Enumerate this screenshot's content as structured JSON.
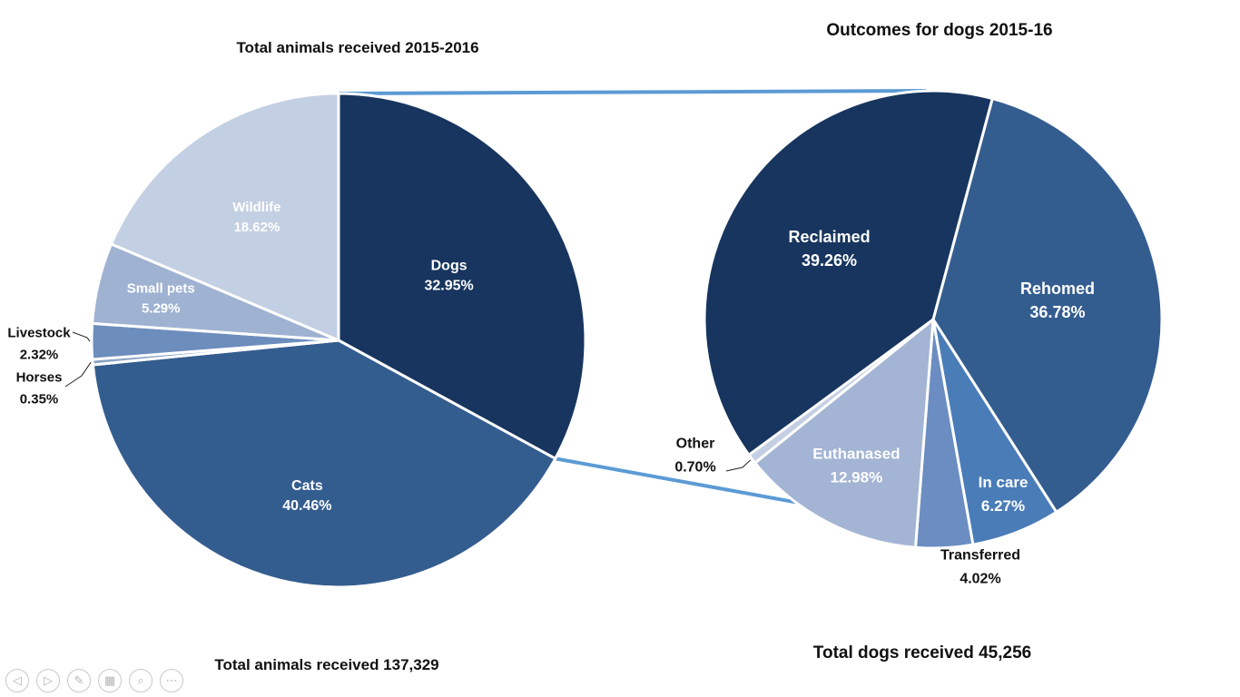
{
  "chart_data": [
    {
      "type": "pie",
      "title": "Total animals received 2015-2016",
      "footer": "Total animals received 137,329",
      "slices": [
        {
          "label": "Dogs",
          "value": 32.95,
          "display": "32.95%",
          "color": "#17355e"
        },
        {
          "label": "Cats",
          "value": 40.46,
          "display": "40.46%",
          "color": "#345d8f"
        },
        {
          "label": "Horses",
          "value": 0.35,
          "display": "0.35%",
          "color": "#8aa3c6"
        },
        {
          "label": "Livestock",
          "value": 2.32,
          "display": "2.32%",
          "color": "#6d8dbd"
        },
        {
          "label": "Small pets",
          "value": 5.29,
          "display": "5.29%",
          "color": "#9fb2d2"
        },
        {
          "label": "Wildlife",
          "value": 18.62,
          "display": "18.62%",
          "color": "#c3cfe3"
        }
      ]
    },
    {
      "type": "pie",
      "title": "Outcomes for dogs 2015-16",
      "footer": "Total dogs received 45,256",
      "slices": [
        {
          "label": "Rehomed",
          "value": 36.78,
          "display": "36.78%",
          "color": "#345d8f"
        },
        {
          "label": "In care",
          "value": 6.27,
          "display": "6.27%",
          "color": "#4a7cb8"
        },
        {
          "label": "Transferred",
          "value": 4.02,
          "display": "4.02%",
          "color": "#6b8dc1"
        },
        {
          "label": "Euthanased",
          "value": 12.98,
          "display": "12.98%",
          "color": "#a3b4d4"
        },
        {
          "label": "Other",
          "value": 0.7,
          "display": "0.70%",
          "color": "#c4cfe3"
        },
        {
          "label": "Reclaimed",
          "value": 39.26,
          "display": "39.26%",
          "color": "#17355e"
        }
      ]
    }
  ],
  "connector_color": "#5b9bd5",
  "slideshow_controls": [
    {
      "name": "previous-slide-button",
      "icon": "◁"
    },
    {
      "name": "next-slide-button",
      "icon": "▷"
    },
    {
      "name": "pen-tool-button",
      "icon": "✎"
    },
    {
      "name": "see-all-slides-button",
      "icon": "▦"
    },
    {
      "name": "zoom-button",
      "icon": "⌕"
    },
    {
      "name": "more-options-button",
      "icon": "⋯"
    }
  ]
}
